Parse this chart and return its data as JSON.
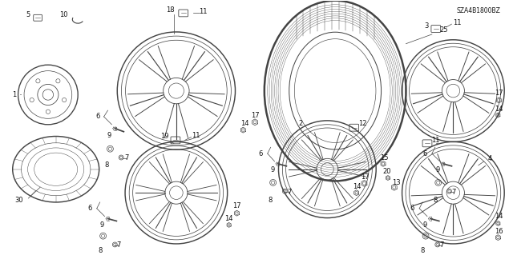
{
  "background_color": "#ffffff",
  "diagram_code": "SZA4B1800BZ",
  "figsize": [
    6.4,
    3.19
  ],
  "dpi": 100,
  "line_color": "#444444",
  "text_color": "#111111"
}
